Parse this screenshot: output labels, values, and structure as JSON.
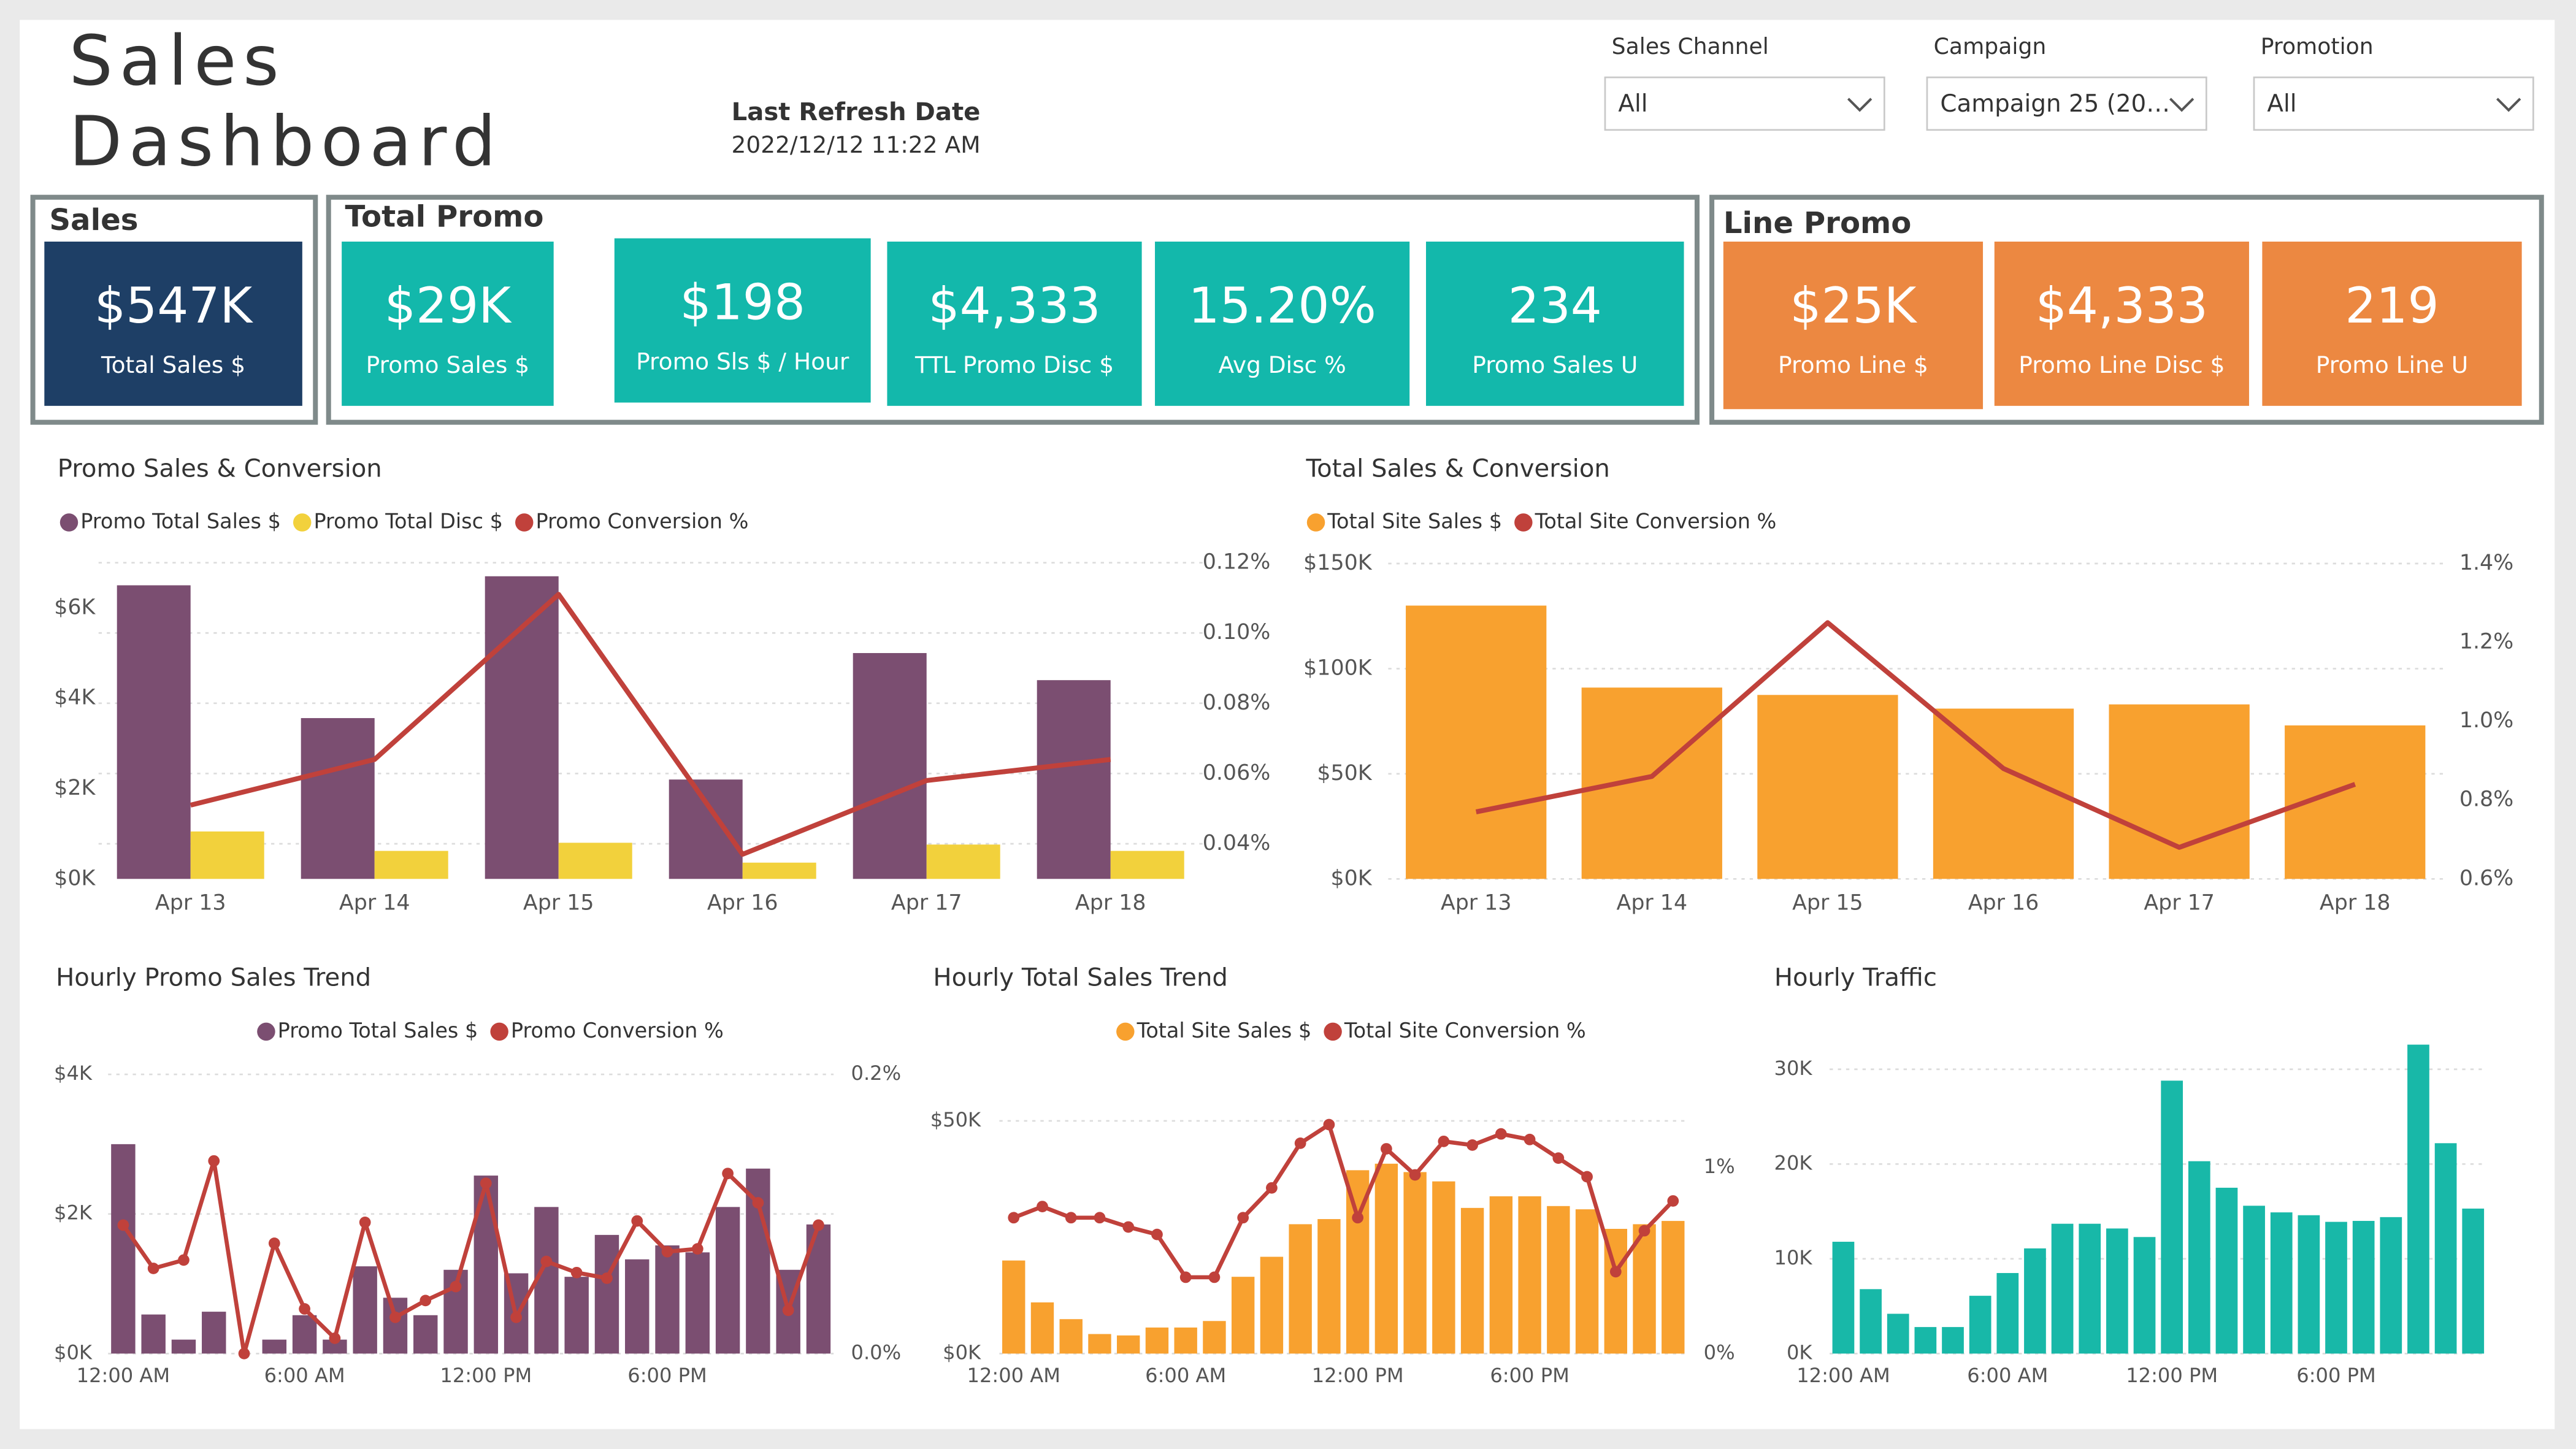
{
  "header": {
    "title_lines": [
      "Sales",
      "Dashboard"
    ],
    "refresh_label": "Last Refresh Date",
    "refresh_date": "2022/12/12 11:22 AM"
  },
  "filters": [
    {
      "label": "Sales Channel",
      "value": "All"
    },
    {
      "label": "Campaign",
      "value": "Campaign 25 (20…"
    },
    {
      "label": "Promotion",
      "value": "All"
    }
  ],
  "kpi_groups": [
    {
      "title": "Sales",
      "color": "#1e3f66",
      "cards": [
        {
          "value": "$547K",
          "label": "Total Sales $"
        }
      ]
    },
    {
      "title": "Total Promo",
      "color": "#13b8ab",
      "cards": [
        {
          "value": "$29K",
          "label": "Promo Sales $"
        },
        {
          "value": "$198",
          "label": "Promo Sls $ / Hour"
        },
        {
          "value": "$4,333",
          "label": "TTL Promo Disc $"
        },
        {
          "value": "15.20%",
          "label": "Avg Disc %"
        },
        {
          "value": "234",
          "label": "Promo Sales U"
        }
      ]
    },
    {
      "title": "Line Promo",
      "color": "#ec8841",
      "cards": [
        {
          "value": "$25K",
          "label": "Promo Line $"
        },
        {
          "value": "$4,333",
          "label": "Promo Line Disc $"
        },
        {
          "value": "219",
          "label": "Promo Line U"
        }
      ]
    }
  ],
  "chart_data": [
    {
      "type": "combo",
      "title": "Promo Sales & Conversion",
      "grid": "y2",
      "categories": [
        "Apr 13",
        "Apr 14",
        "Apr 15",
        "Apr 16",
        "Apr 17",
        "Apr 18"
      ],
      "ylim": [
        0,
        7000
      ],
      "yticks": [
        {
          "value": 0,
          "label": "$0K"
        },
        {
          "value": 2000,
          "label": "$2K"
        },
        {
          "value": 4000,
          "label": "$4K"
        },
        {
          "value": 6000,
          "label": "$6K"
        }
      ],
      "y2lim": [
        0.03,
        0.12
      ],
      "y2ticks": [
        {
          "value": 0.04,
          "label": "0.04%"
        },
        {
          "value": 0.06,
          "label": "0.06%"
        },
        {
          "value": 0.08,
          "label": "0.08%"
        },
        {
          "value": 0.1,
          "label": "0.10%"
        },
        {
          "value": 0.12,
          "label": "0.12%"
        }
      ],
      "series": [
        {
          "name": "Promo Total Sales $",
          "type": "bar",
          "color": "#7b4e71",
          "values": [
            6500,
            3560,
            6700,
            2200,
            5000,
            4400
          ]
        },
        {
          "name": "Promo Total Disc $",
          "type": "bar",
          "color": "#f2d13c",
          "values": [
            1050,
            620,
            800,
            360,
            760,
            620
          ]
        },
        {
          "name": "Promo Conversion %",
          "type": "line",
          "axis": "y2",
          "color": "#c0413b",
          "values": [
            0.051,
            0.064,
            0.111,
            0.037,
            0.058,
            0.064
          ]
        }
      ]
    },
    {
      "type": "combo",
      "title": "Total Sales & Conversion",
      "grid": "y",
      "categories": [
        "Apr 13",
        "Apr 14",
        "Apr 15",
        "Apr 16",
        "Apr 17",
        "Apr 18"
      ],
      "ylim": [
        0,
        150000
      ],
      "yticks": [
        {
          "value": 0,
          "label": "$0K"
        },
        {
          "value": 50000,
          "label": "$50K"
        },
        {
          "value": 100000,
          "label": "$100K"
        },
        {
          "value": 150000,
          "label": "$150K"
        }
      ],
      "y2lim": [
        0.6,
        1.4
      ],
      "y2ticks": [
        {
          "value": 0.6,
          "label": "0.6%"
        },
        {
          "value": 0.8,
          "label": "0.8%"
        },
        {
          "value": 1.0,
          "label": "1.0%"
        },
        {
          "value": 1.2,
          "label": "1.2%"
        },
        {
          "value": 1.4,
          "label": "1.4%"
        }
      ],
      "series": [
        {
          "name": "Total Site Sales $",
          "type": "bar",
          "color": "#f8a12f",
          "values": [
            130000,
            91000,
            87500,
            81000,
            83000,
            73000
          ]
        },
        {
          "name": "Total Site Conversion %",
          "type": "line",
          "axis": "y2",
          "color": "#c0413b",
          "values": [
            0.77,
            0.86,
            1.25,
            0.88,
            0.68,
            0.84
          ]
        }
      ]
    },
    {
      "type": "combo",
      "title": "Hourly Promo Sales Trend",
      "grid": "y",
      "markers": true,
      "categories": [
        "12:00 AM",
        null,
        null,
        null,
        null,
        null,
        "6:00 AM",
        null,
        null,
        null,
        null,
        null,
        "12:00 PM",
        null,
        null,
        null,
        null,
        null,
        "6:00 PM",
        null,
        null,
        null,
        null,
        null
      ],
      "ylim": [
        0,
        4000
      ],
      "yticks": [
        {
          "value": 0,
          "label": "$0K"
        },
        {
          "value": 2000,
          "label": "$2K"
        },
        {
          "value": 4000,
          "label": "$4K"
        }
      ],
      "y2lim": [
        0,
        0.2
      ],
      "y2ticks": [
        {
          "value": 0,
          "label": "0.0%"
        },
        {
          "value": 0.2,
          "label": "0.2%"
        }
      ],
      "series": [
        {
          "name": "Promo Total Sales $",
          "type": "bar",
          "color": "#7b4e71",
          "values": [
            3000,
            560,
            200,
            600,
            0,
            200,
            550,
            200,
            1250,
            800,
            550,
            1200,
            2550,
            1150,
            2100,
            1100,
            1700,
            1350,
            1550,
            1450,
            2100,
            2650,
            1200,
            1850
          ]
        },
        {
          "name": "Promo Conversion %",
          "type": "line",
          "axis": "y2",
          "color": "#c0413b",
          "values": [
            0.092,
            0.061,
            0.067,
            0.138,
            0.0,
            0.079,
            0.032,
            0.011,
            0.094,
            0.026,
            0.038,
            0.048,
            0.122,
            0.026,
            0.066,
            0.058,
            0.054,
            0.095,
            0.073,
            0.075,
            0.129,
            0.108,
            0.031,
            0.092
          ]
        }
      ]
    },
    {
      "type": "combo",
      "title": "Hourly Total Sales Trend",
      "grid": "y",
      "markers": true,
      "categories": [
        "12:00 AM",
        null,
        null,
        null,
        null,
        null,
        "6:00 AM",
        null,
        null,
        null,
        null,
        null,
        "12:00 PM",
        null,
        null,
        null,
        null,
        null,
        "6:00 PM",
        null,
        null,
        null,
        null,
        null
      ],
      "ylim": [
        0,
        60000
      ],
      "yticks": [
        {
          "value": 0,
          "label": "$0K"
        },
        {
          "value": 50000,
          "label": "$50K"
        }
      ],
      "y2lim": [
        0,
        1.5
      ],
      "y2ticks": [
        {
          "value": 0,
          "label": "0%"
        },
        {
          "value": 1,
          "label": "1%"
        }
      ],
      "series": [
        {
          "name": "Total Site Sales $",
          "type": "bar",
          "color": "#f8a12f",
          "values": [
            20000,
            11000,
            7400,
            4200,
            3900,
            5600,
            5600,
            7000,
            16500,
            20800,
            27800,
            28900,
            39400,
            40800,
            39000,
            37000,
            31300,
            33800,
            33800,
            31700,
            31000,
            26800,
            27800,
            28500
          ]
        },
        {
          "name": "Total Site Conversion %",
          "type": "line",
          "axis": "y2",
          "color": "#c0413b",
          "values": [
            0.73,
            0.79,
            0.73,
            0.73,
            0.68,
            0.64,
            0.41,
            0.41,
            0.73,
            0.89,
            1.13,
            1.23,
            0.73,
            1.1,
            0.96,
            1.14,
            1.12,
            1.18,
            1.15,
            1.05,
            0.95,
            0.44,
            0.66,
            0.82
          ]
        }
      ]
    },
    {
      "type": "bar",
      "title": "Hourly Traffic",
      "grid": "y",
      "color": "#18b8a8",
      "categories": [
        "12:00 AM",
        null,
        null,
        null,
        null,
        null,
        "6:00 AM",
        null,
        null,
        null,
        null,
        null,
        "12:00 PM",
        null,
        null,
        null,
        null,
        null,
        "6:00 PM",
        null,
        null,
        null,
        null,
        null
      ],
      "ylim": [
        0,
        33000
      ],
      "yticks": [
        {
          "value": 0,
          "label": "0K"
        },
        {
          "value": 10000,
          "label": "10K"
        },
        {
          "value": 20000,
          "label": "20K"
        },
        {
          "value": 30000,
          "label": "30K"
        }
      ],
      "values": [
        11800,
        6800,
        4200,
        2800,
        2800,
        6100,
        8500,
        11100,
        13700,
        13700,
        13200,
        12300,
        28800,
        20300,
        17500,
        15600,
        14900,
        14600,
        13900,
        14000,
        14400,
        32600,
        22200,
        15300
      ]
    }
  ]
}
